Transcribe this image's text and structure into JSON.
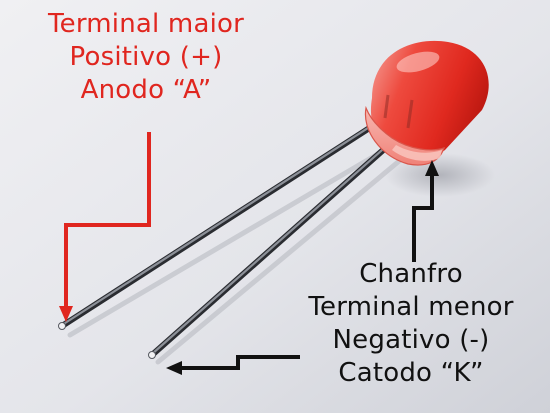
{
  "anode_label": {
    "line1": "Terminal maior",
    "line2": "Positivo (+)",
    "line3": "Anodo “A”",
    "color": "#e0261f"
  },
  "cathode_label": {
    "line1": "Chanfro",
    "line2": "Terminal menor",
    "line3": "Negativo (-)",
    "line4": "Catodo “K”",
    "color": "#111111"
  },
  "led": {
    "body_color": "#e8302a"
  }
}
